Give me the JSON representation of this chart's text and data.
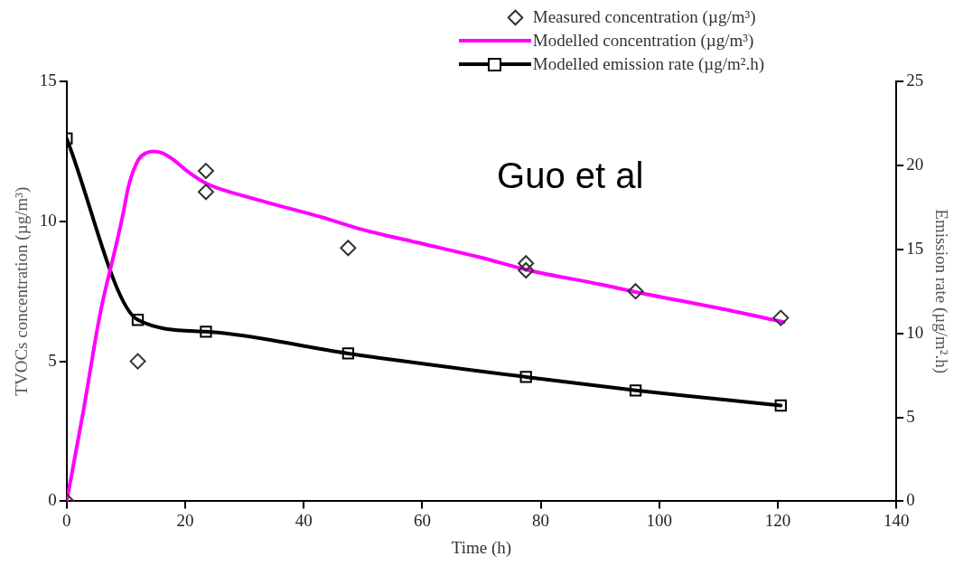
{
  "chart_data": {
    "type": "line",
    "xlabel": "Time (h)",
    "ylabel": "TVOCs concentration (µg/m³)",
    "y2label": "Emission rate (µg/m².h)",
    "xlim": [
      0,
      140
    ],
    "xticks": [
      0,
      20,
      40,
      60,
      80,
      100,
      120,
      140
    ],
    "ylim": [
      0,
      15
    ],
    "yticks": [
      0,
      5,
      10,
      15
    ],
    "y2lim": [
      0,
      25
    ],
    "y2ticks": [
      0,
      5,
      10,
      15,
      20,
      25
    ],
    "legend": "top right",
    "annotations": [
      "Guo et al"
    ],
    "series": [
      {
        "name": "Measured concentration (µg/m³)",
        "type": "scatter",
        "marker": "diamond",
        "color": "#333333",
        "x": [
          0,
          12,
          23.5,
          23.5,
          47.5,
          77.5,
          77.5,
          96,
          120.5
        ],
        "values": [
          0,
          5.0,
          11.8,
          11.05,
          9.05,
          8.5,
          8.25,
          7.5,
          6.55
        ]
      },
      {
        "name": "Modelled concentration (µg/m³)",
        "marker": "none",
        "color": "#ff00ff",
        "x": [
          0,
          2.8,
          5.6,
          8.4,
          9.4,
          10.5,
          12.1,
          13.5,
          14.6,
          16,
          18,
          20,
          23.6,
          30,
          43,
          50,
          60,
          70,
          78,
          90,
          96.6,
          110,
          121
        ],
        "values": [
          0,
          3.2,
          6.65,
          9.2,
          10.15,
          11.3,
          12.2,
          12.45,
          12.5,
          12.45,
          12.2,
          11.85,
          11.35,
          10.9,
          10.15,
          9.7,
          9.2,
          8.7,
          8.25,
          7.75,
          7.45,
          6.9,
          6.4
        ]
      },
      {
        "name": "Modelled emission rate (µg/m².h)",
        "marker": "square",
        "axis": "y2",
        "color": "#000000",
        "x": [
          0,
          12,
          23.5,
          47.5,
          77.5,
          96,
          120.5
        ],
        "values": [
          21.6,
          10.8,
          10.1,
          8.8,
          7.4,
          6.6,
          5.7
        ]
      }
    ]
  }
}
